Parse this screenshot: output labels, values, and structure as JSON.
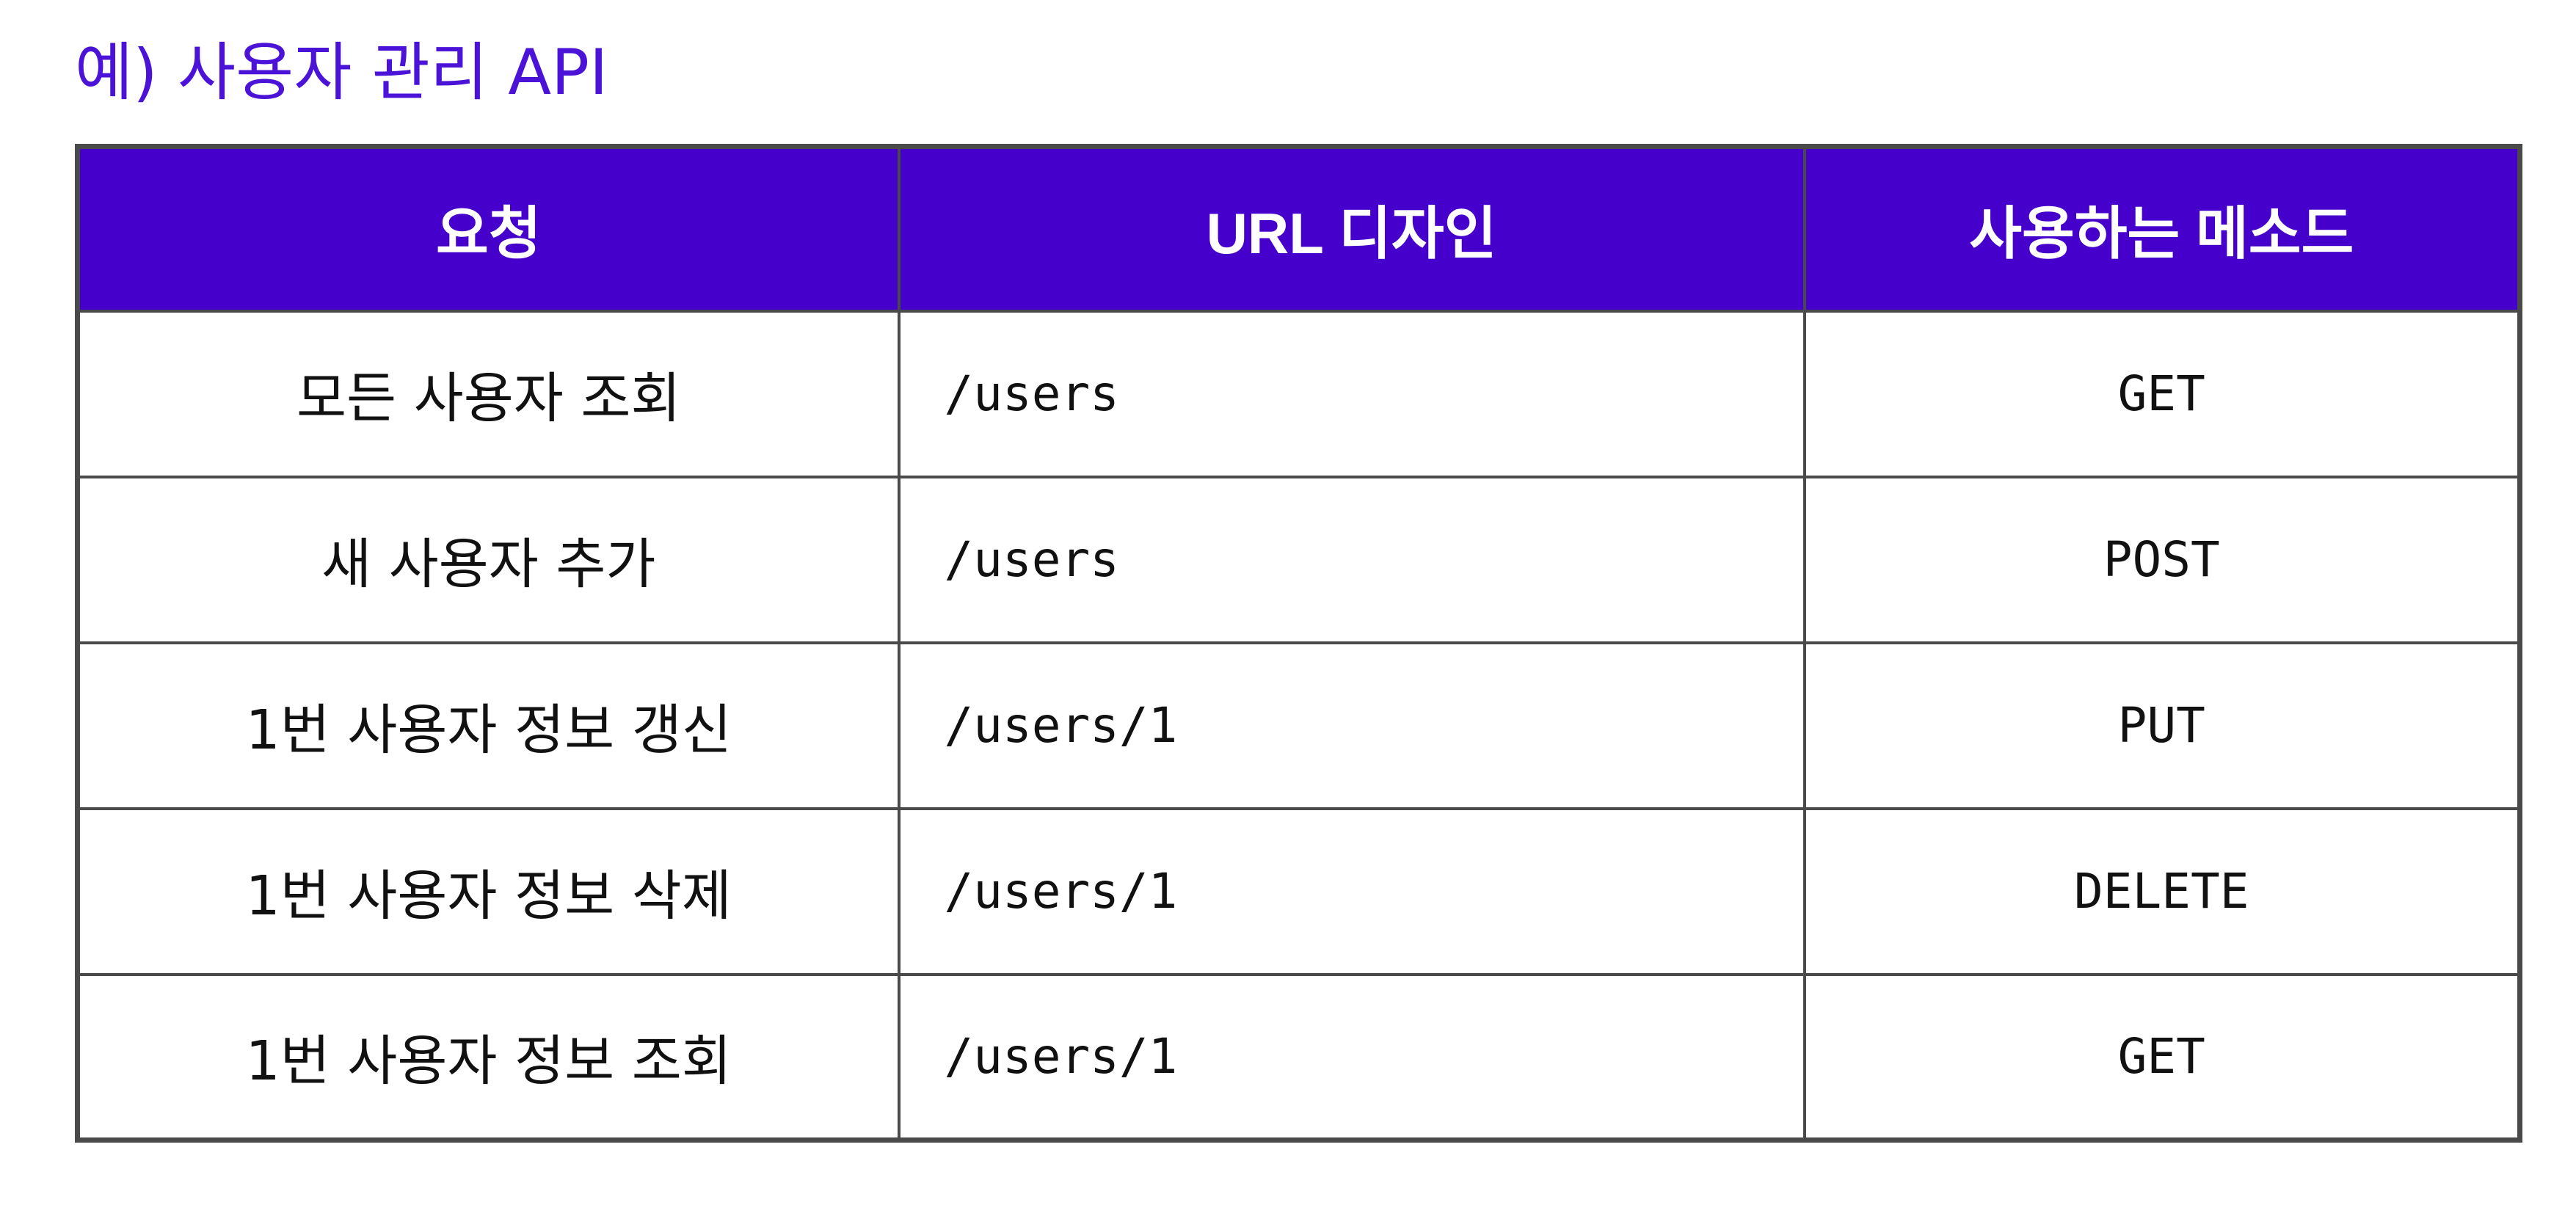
{
  "title": "예) 사용자 관리 API",
  "table": {
    "headers": [
      "요청",
      "URL 디자인",
      "사용하는 메소드"
    ],
    "rows": [
      {
        "request": "모든 사용자 조회",
        "url": "/users",
        "method": "GET"
      },
      {
        "request": "새 사용자 추가",
        "url": "/users",
        "method": "POST"
      },
      {
        "request": "1번 사용자 정보 갱신",
        "url": "/users/1",
        "method": "PUT"
      },
      {
        "request": "1번 사용자 정보 삭제",
        "url": "/users/1",
        "method": "DELETE"
      },
      {
        "request": "1번 사용자 정보 조회",
        "url": "/users/1",
        "method": "GET"
      }
    ]
  },
  "colors": {
    "title": "#4b12d8",
    "header_bg": "#4500cc",
    "header_text": "#ffffff",
    "border": "#4a4a4a"
  }
}
